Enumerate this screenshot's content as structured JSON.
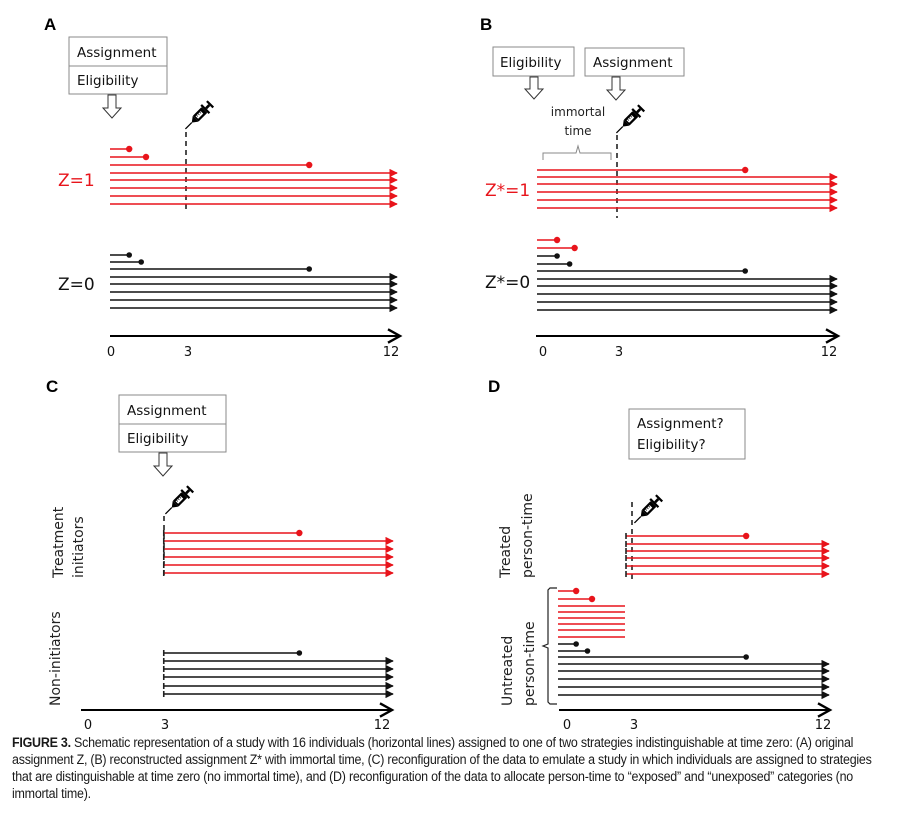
{
  "colors": {
    "treated": "#e8141b",
    "untreated": "#111111",
    "box_border": "#8a8a8a"
  },
  "icons": {
    "treatment": "syringe-icon",
    "down_arrow": "hollow-down-arrow-icon"
  },
  "panels": [
    {
      "letter": "A",
      "boxes": [
        "Assignment",
        "Eligibility"
      ],
      "groups": [
        {
          "label": "Z=1",
          "color": "treated"
        },
        {
          "label": "Z=0",
          "color": "untreated"
        }
      ],
      "axis": {
        "ticks": [
          "0",
          "3",
          "12"
        ],
        "range": [
          0,
          12
        ]
      }
    },
    {
      "letter": "B",
      "boxes": [
        "Eligibility",
        "Assignment"
      ],
      "annotation": [
        "immortal",
        "time"
      ],
      "groups": [
        {
          "label": "Z*=1",
          "color": "treated"
        },
        {
          "label": "Z*=0",
          "color": "untreated"
        }
      ],
      "axis": {
        "ticks": [
          "0",
          "3",
          "12"
        ],
        "range": [
          0,
          12
        ]
      }
    },
    {
      "letter": "C",
      "boxes": [
        "Assignment",
        "Eligibility"
      ],
      "groups": [
        {
          "label": [
            "Treatment",
            "initiators"
          ],
          "color": "treated"
        },
        {
          "label": [
            "Non-initiators"
          ],
          "color": "untreated"
        }
      ],
      "axis": {
        "ticks": [
          "0",
          "3",
          "12"
        ],
        "range": [
          0,
          12
        ]
      }
    },
    {
      "letter": "D",
      "boxes": [
        "Assignment?",
        "Eligibility?"
      ],
      "groups": [
        {
          "label": [
            "Treated",
            "person-time"
          ],
          "color": "treated"
        },
        {
          "label": [
            "Untreated",
            "person-time"
          ],
          "color": "untreated"
        }
      ],
      "axis": {
        "ticks": [
          "0",
          "3",
          "12"
        ],
        "range": [
          0,
          12
        ]
      }
    }
  ],
  "chart_data": [
    {
      "type": "timeline",
      "title": "A",
      "xlim": [
        0,
        12
      ],
      "treatment_time": 3,
      "series": [
        {
          "name": "Z=1",
          "color": "treated",
          "lines": [
            {
              "start": 0,
              "end": 0.8,
              "event": true
            },
            {
              "start": 0,
              "end": 1.5,
              "event": true
            },
            {
              "start": 0,
              "end": 8.3,
              "event": true
            },
            {
              "start": 0,
              "end": 12,
              "event": false
            },
            {
              "start": 0,
              "end": 12,
              "event": false
            },
            {
              "start": 0,
              "end": 12,
              "event": false
            },
            {
              "start": 0,
              "end": 12,
              "event": false
            },
            {
              "start": 0,
              "end": 12,
              "event": false
            }
          ]
        },
        {
          "name": "Z=0",
          "color": "untreated",
          "lines": [
            {
              "start": 0,
              "end": 0.8,
              "event": true
            },
            {
              "start": 0,
              "end": 1.3,
              "event": true
            },
            {
              "start": 0,
              "end": 8.3,
              "event": true
            },
            {
              "start": 0,
              "end": 12,
              "event": false
            },
            {
              "start": 0,
              "end": 12,
              "event": false
            },
            {
              "start": 0,
              "end": 12,
              "event": false
            },
            {
              "start": 0,
              "end": 12,
              "event": false
            },
            {
              "start": 0,
              "end": 12,
              "event": false
            }
          ]
        }
      ]
    },
    {
      "type": "timeline",
      "title": "B",
      "xlim": [
        0,
        12
      ],
      "treatment_time": 3,
      "immortal_time": [
        0,
        3
      ],
      "series": [
        {
          "name": "Z*=1",
          "color": "treated",
          "lines": [
            {
              "start": 0,
              "end": 8.3,
              "event": true
            },
            {
              "start": 0,
              "end": 12,
              "event": false
            },
            {
              "start": 0,
              "end": 12,
              "event": false
            },
            {
              "start": 0,
              "end": 12,
              "event": false
            },
            {
              "start": 0,
              "end": 12,
              "event": false
            },
            {
              "start": 0,
              "end": 12,
              "event": false
            }
          ]
        },
        {
          "name": "Z*=0",
          "color": "mixed",
          "lines": [
            {
              "start": 0,
              "end": 0.8,
              "event": true,
              "color": "treated"
            },
            {
              "start": 0,
              "end": 1.5,
              "event": true,
              "color": "treated"
            },
            {
              "start": 0,
              "end": 0.8,
              "event": true,
              "color": "untreated"
            },
            {
              "start": 0,
              "end": 1.3,
              "event": true,
              "color": "untreated"
            },
            {
              "start": 0,
              "end": 8.3,
              "event": true,
              "color": "untreated"
            },
            {
              "start": 0,
              "end": 12,
              "event": false,
              "color": "untreated"
            },
            {
              "start": 0,
              "end": 12,
              "event": false,
              "color": "untreated"
            },
            {
              "start": 0,
              "end": 12,
              "event": false,
              "color": "untreated"
            },
            {
              "start": 0,
              "end": 12,
              "event": false,
              "color": "untreated"
            },
            {
              "start": 0,
              "end": 12,
              "event": false,
              "color": "untreated"
            }
          ]
        }
      ]
    },
    {
      "type": "timeline",
      "title": "C",
      "xlim": [
        0,
        12
      ],
      "treatment_time": 3,
      "series": [
        {
          "name": "Treatment initiators",
          "color": "treated",
          "lines": [
            {
              "start": 3,
              "end": 8.3,
              "event": true
            },
            {
              "start": 3,
              "end": 12,
              "event": false
            },
            {
              "start": 3,
              "end": 12,
              "event": false
            },
            {
              "start": 3,
              "end": 12,
              "event": false
            },
            {
              "start": 3,
              "end": 12,
              "event": false
            },
            {
              "start": 3,
              "end": 12,
              "event": false
            }
          ]
        },
        {
          "name": "Non-initiators",
          "color": "untreated",
          "lines": [
            {
              "start": 3,
              "end": 8.3,
              "event": true
            },
            {
              "start": 3,
              "end": 12,
              "event": false
            },
            {
              "start": 3,
              "end": 12,
              "event": false
            },
            {
              "start": 3,
              "end": 12,
              "event": false
            },
            {
              "start": 3,
              "end": 12,
              "event": false
            },
            {
              "start": 3,
              "end": 12,
              "event": false
            }
          ]
        }
      ]
    },
    {
      "type": "timeline",
      "title": "D",
      "xlim": [
        0,
        12
      ],
      "treatment_time": 3,
      "series": [
        {
          "name": "Treated person-time",
          "color": "treated",
          "lines": [
            {
              "start": 3,
              "end": 8.3,
              "event": true
            },
            {
              "start": 3,
              "end": 12,
              "event": false
            },
            {
              "start": 3,
              "end": 12,
              "event": false
            },
            {
              "start": 3,
              "end": 12,
              "event": false
            },
            {
              "start": 3,
              "end": 12,
              "event": false
            },
            {
              "start": 3,
              "end": 12,
              "event": false
            }
          ]
        },
        {
          "name": "Untreated person-time",
          "color": "mixed",
          "lines": [
            {
              "start": 0,
              "end": 0.8,
              "event": true,
              "color": "treated"
            },
            {
              "start": 0,
              "end": 1.5,
              "event": true,
              "color": "treated"
            },
            {
              "start": 0,
              "end": 3,
              "event": false,
              "color": "treated",
              "arrow": false
            },
            {
              "start": 0,
              "end": 3,
              "event": false,
              "color": "treated",
              "arrow": false
            },
            {
              "start": 0,
              "end": 3,
              "event": false,
              "color": "treated",
              "arrow": false
            },
            {
              "start": 0,
              "end": 3,
              "event": false,
              "color": "treated",
              "arrow": false
            },
            {
              "start": 0,
              "end": 3,
              "event": false,
              "color": "treated",
              "arrow": false
            },
            {
              "start": 0,
              "end": 3,
              "event": false,
              "color": "treated",
              "arrow": false
            },
            {
              "start": 0,
              "end": 0.8,
              "event": true,
              "color": "untreated"
            },
            {
              "start": 0,
              "end": 1.3,
              "event": true,
              "color": "untreated"
            },
            {
              "start": 0,
              "end": 8.3,
              "event": true,
              "color": "untreated"
            },
            {
              "start": 0,
              "end": 12,
              "event": false,
              "color": "untreated"
            },
            {
              "start": 0,
              "end": 12,
              "event": false,
              "color": "untreated"
            },
            {
              "start": 0,
              "end": 12,
              "event": false,
              "color": "untreated"
            },
            {
              "start": 0,
              "end": 12,
              "event": false,
              "color": "untreated"
            },
            {
              "start": 0,
              "end": 12,
              "event": false,
              "color": "untreated"
            }
          ]
        }
      ]
    }
  ],
  "caption": {
    "label": "FIGURE 3.",
    "text": "Schematic representation of a study with 16 individuals (horizontal lines) assigned to one of two strategies indistinguishable at time zero: (A) original assignment Z, (B) reconstructed assignment Z* with immortal time, (C) reconfiguration of the data to emulate a study in which individuals are assigned to strategies that are distinguishable at time zero (no immortal time), and (D) reconfiguration of the data to allocate person-time to “exposed” and “unexposed” categories (no immortal time)."
  }
}
